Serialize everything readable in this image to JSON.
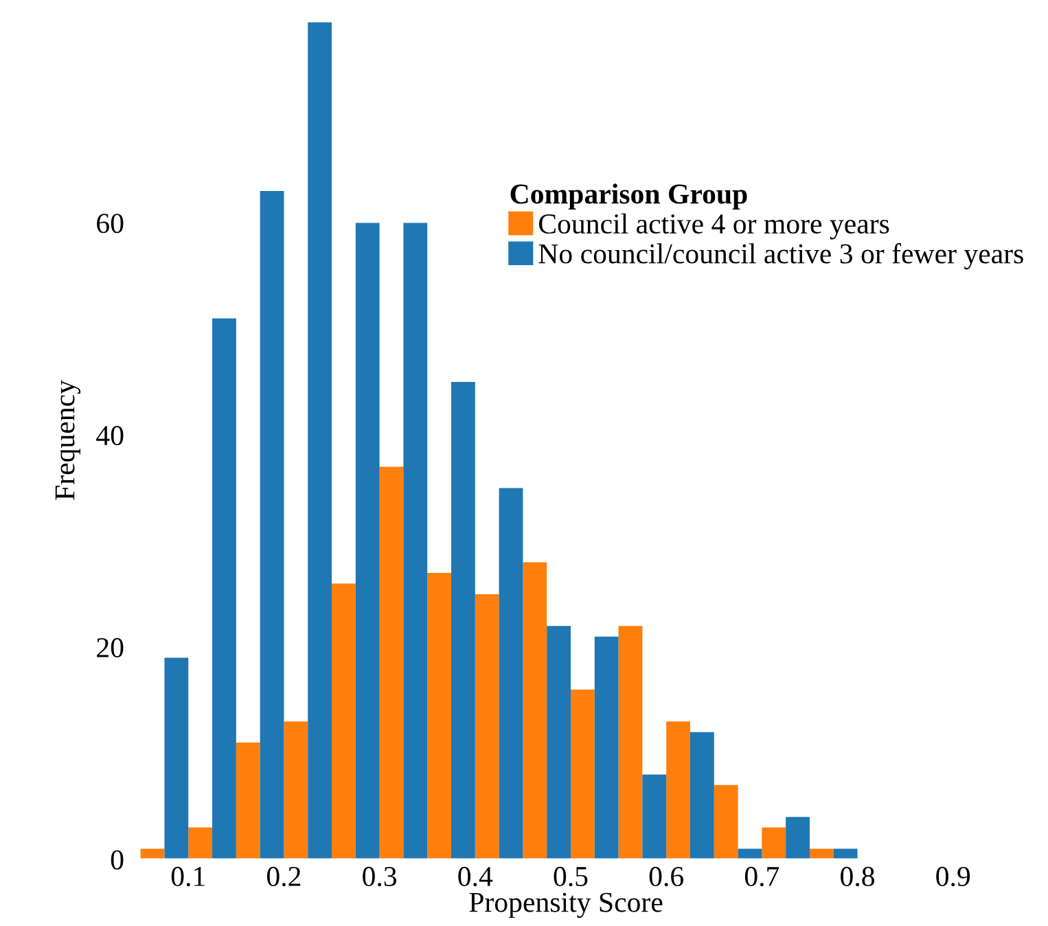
{
  "chart_data": {
    "type": "histogram",
    "xlabel": "Propensity Score",
    "ylabel": "Frequency",
    "legend_title": "Comparison Group",
    "bins": [
      0.05,
      0.1,
      0.15,
      0.2,
      0.25,
      0.3,
      0.35,
      0.4,
      0.45,
      0.5,
      0.55,
      0.6,
      0.65,
      0.7,
      0.75,
      0.8
    ],
    "series": [
      {
        "name": "Council active 4 or more years",
        "color": "#ff7f0e",
        "values": [
          1,
          3,
          11,
          13,
          26,
          37,
          27,
          25,
          28,
          16,
          22,
          13,
          7,
          3,
          1
        ]
      },
      {
        "name": "No council/council active 3 or fewer years",
        "color": "#1f77b4",
        "values": [
          19,
          51,
          63,
          79,
          60,
          60,
          45,
          35,
          22,
          21,
          8,
          12,
          1,
          4,
          1
        ]
      }
    ],
    "xlim": [
      0.04,
      0.95
    ],
    "ylim": [
      0,
      79
    ],
    "xticks": [
      0.1,
      0.2,
      0.3,
      0.4,
      0.5,
      0.6,
      0.7,
      0.8,
      0.9
    ],
    "yticks": [
      0,
      20,
      40,
      60
    ],
    "grid": false,
    "legend": "top right"
  }
}
